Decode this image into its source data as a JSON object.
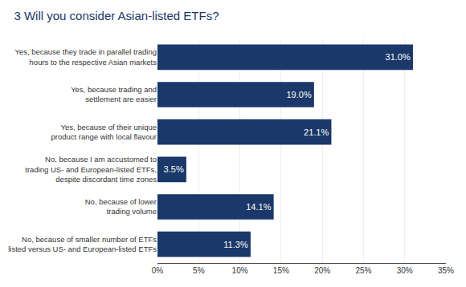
{
  "chart_data": {
    "type": "bar",
    "orientation": "horizontal",
    "title": "3 Will you consider Asian-listed ETFs?",
    "categories": [
      "Yes, because they trade in parallel trading\nhours to the respective Asian markets",
      "Yes, because trading and\nsettlement are easier",
      "Yes, because of their unique\nproduct range with local flavour",
      "No, because I am accustomed to\ntrading US- and European-listed ETFs,\ndespite discordant time zones",
      "No, because of lower\ntrading volume",
      "No, because of smaller number of ETFs\nlisted versus US- and European-listed ETFs"
    ],
    "values": [
      31.0,
      19.0,
      21.1,
      3.5,
      14.1,
      11.3
    ],
    "value_labels": [
      "31.0%",
      "19.0%",
      "21.1%",
      "3.5%",
      "14.1%",
      "11.3%"
    ],
    "data_labels": true,
    "color": "#1a3869",
    "xlim": [
      0,
      35
    ],
    "xticks": [
      {
        "value": 0,
        "label": "0%"
      },
      {
        "value": 5,
        "label": "5%"
      },
      {
        "value": 10,
        "label": "10%"
      },
      {
        "value": 15,
        "label": "15%"
      },
      {
        "value": 20,
        "label": "20%"
      },
      {
        "value": 25,
        "label": "25%"
      },
      {
        "value": 30,
        "label": "30%"
      },
      {
        "value": 35,
        "label": "35%"
      }
    ],
    "grid": true
  }
}
